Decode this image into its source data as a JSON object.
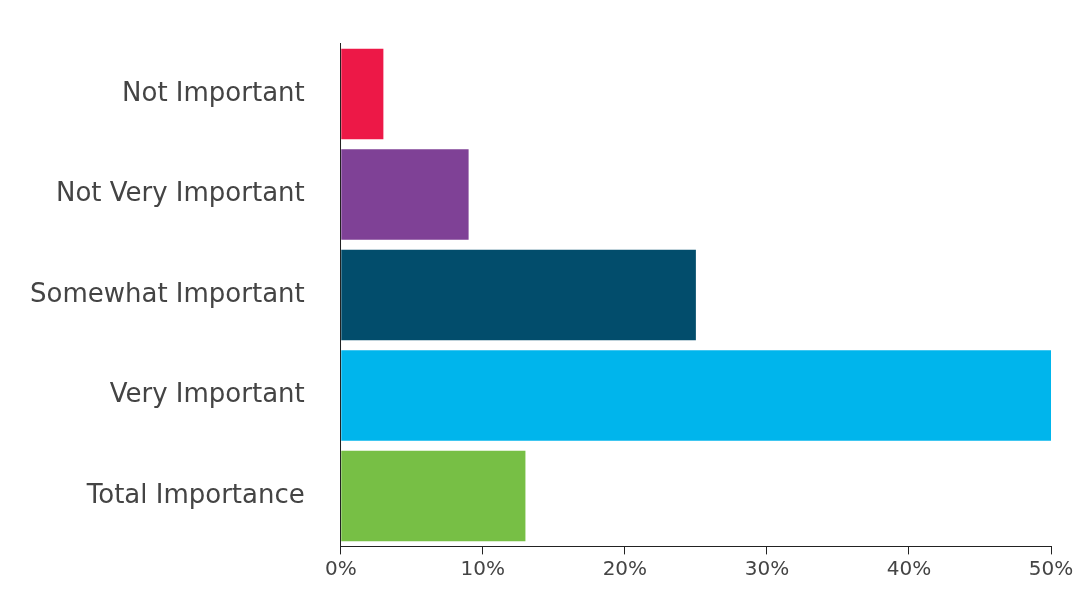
{
  "chart_data": {
    "type": "bar",
    "orientation": "horizontal",
    "categories": [
      "Not Important",
      "Not Very Important",
      "Somewhat Important",
      "Very Important",
      "Total Importance"
    ],
    "values": [
      3,
      9,
      25,
      50,
      13
    ],
    "colors": [
      "#ed1847",
      "#7f4196",
      "#024d6c",
      "#00b5ec",
      "#77bf45"
    ],
    "xlim": [
      0,
      50
    ],
    "xticks": [
      {
        "value": 0,
        "label": "0%"
      },
      {
        "value": 10,
        "label": "10%"
      },
      {
        "value": 20,
        "label": "20%"
      },
      {
        "value": 30,
        "label": "30%"
      },
      {
        "value": 40,
        "label": "40%"
      },
      {
        "value": 50,
        "label": "50%"
      }
    ],
    "grid": false,
    "legend": false
  }
}
